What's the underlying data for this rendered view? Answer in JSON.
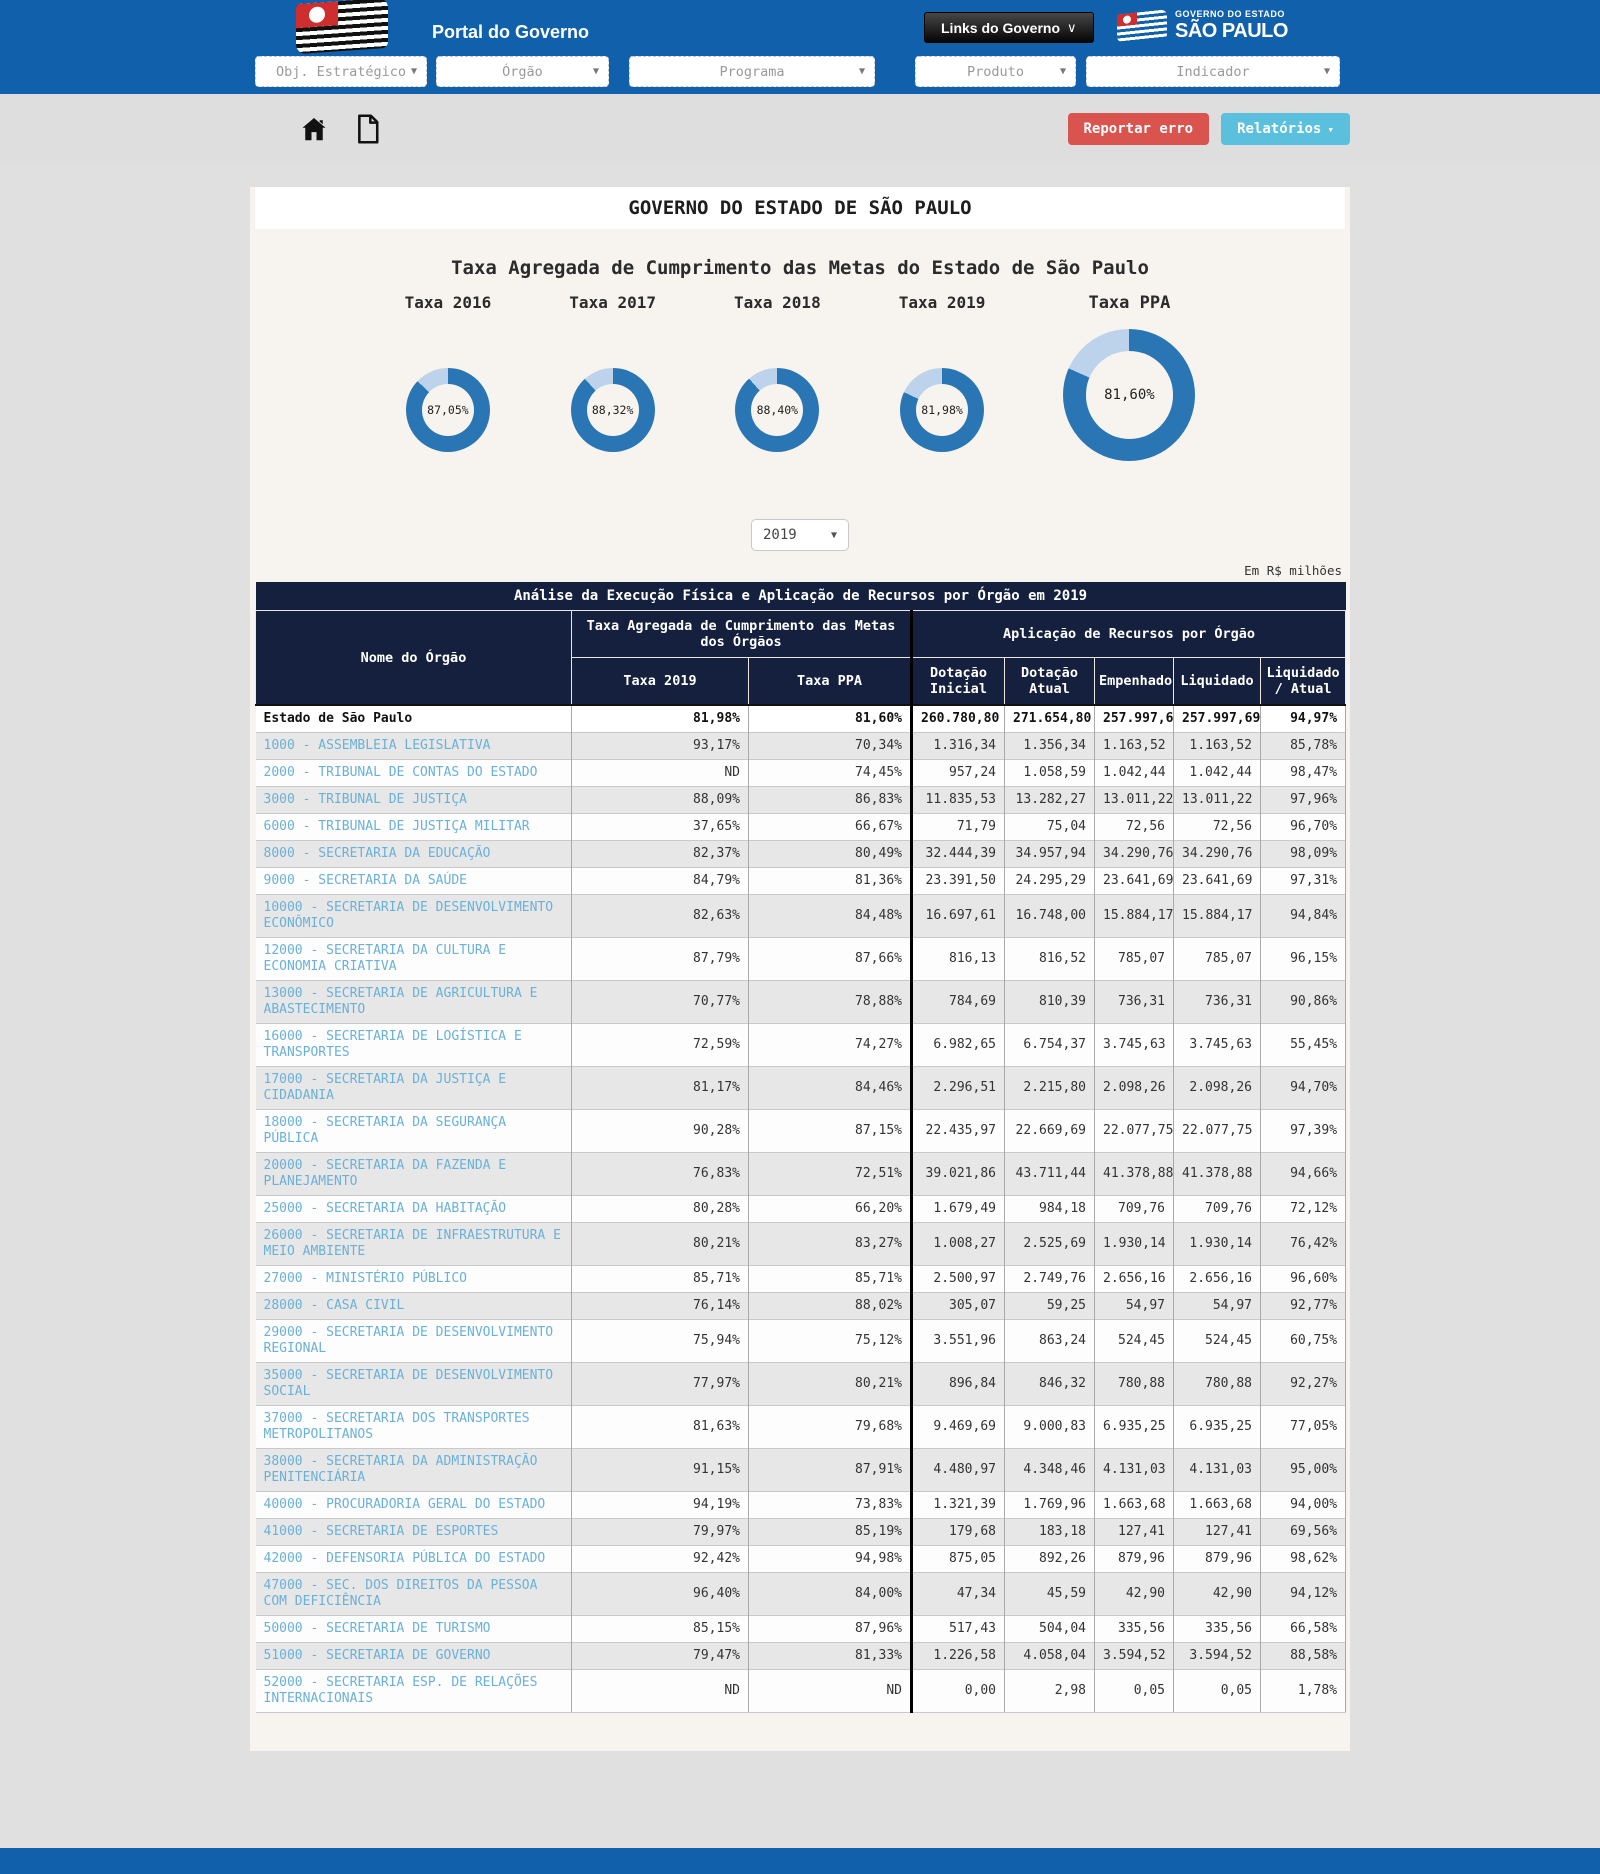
{
  "header": {
    "portal_title": "Portal do Governo",
    "links_button": "Links do Governo",
    "logo_line1": "GOVERNO DO ESTADO",
    "logo_line2": "SÃO PAULO"
  },
  "filters": [
    "Obj. Estratégico",
    "Órgão",
    "Programa",
    "Produto",
    "Indicador"
  ],
  "toolbar": {
    "report_error_label": "Reportar erro",
    "reports_label": "Relatórios"
  },
  "page": {
    "main_title": "GOVERNO DO ESTADO DE SÃO PAULO",
    "chart_title": "Taxa Agregada de Cumprimento das Metas do Estado de São Paulo",
    "year_selected": "2019",
    "unit_note": "Em R$ milhões"
  },
  "icons": {
    "home": "home-icon",
    "file": "file-icon",
    "caret": "chevron-down-icon"
  },
  "colors": {
    "header_blue": "#1160ac",
    "navy_table_header": "#15203e",
    "donut_filled": "#2a76b4",
    "donut_remainder": "#bdd3ec",
    "danger_button": "#d9534f",
    "info_button": "#5bc0de",
    "org_link": "#6ab1d8",
    "card_bg": "#f7f4ef"
  },
  "chart_data": {
    "type": "pie",
    "title": "Taxa Agregada de Cumprimento das Metas do Estado de São Paulo",
    "legend_position": "none",
    "donuts": [
      {
        "label": "Taxa 2016",
        "value_pct": 87.05,
        "display": "87,05%",
        "size": "small"
      },
      {
        "label": "Taxa 2017",
        "value_pct": 88.32,
        "display": "88,32%",
        "size": "small"
      },
      {
        "label": "Taxa 2018",
        "value_pct": 88.4,
        "display": "88,40%",
        "size": "small"
      },
      {
        "label": "Taxa 2019",
        "value_pct": 81.98,
        "display": "81,98%",
        "size": "small"
      },
      {
        "label": "Taxa PPA",
        "value_pct": 81.6,
        "display": "81,60%",
        "size": "big"
      }
    ]
  },
  "table": {
    "caption": "Análise da Execução Física e Aplicação de Recursos por Órgão em 2019",
    "name_header": "Nome do Órgão",
    "group1": "Taxa Agregada de Cumprimento das Metas dos Órgãos",
    "group2": "Aplicação de Recursos por Órgão",
    "sub_headers": [
      "Taxa 2019",
      "Taxa PPA",
      "Dotação Inicial",
      "Dotação Atual",
      "Empenhado",
      "Liquidado",
      "Liquidado / Atual"
    ],
    "rows": [
      {
        "name": "Estado de São Paulo",
        "taxa_2019": "81,98%",
        "taxa_ppa": "81,60%",
        "dotacao_inicial": "260.780,80",
        "dotacao_atual": "271.654,80",
        "empenhado": "257.997,69",
        "liquidado": "257.997,69",
        "liquidado_atual": "94,97%",
        "is_total": true
      },
      {
        "name": "1000 - ASSEMBLEIA LEGISLATIVA",
        "taxa_2019": "93,17%",
        "taxa_ppa": "70,34%",
        "dotacao_inicial": "1.316,34",
        "dotacao_atual": "1.356,34",
        "empenhado": "1.163,52",
        "liquidado": "1.163,52",
        "liquidado_atual": "85,78%"
      },
      {
        "name": "2000 - TRIBUNAL DE CONTAS DO ESTADO",
        "taxa_2019": "ND",
        "taxa_ppa": "74,45%",
        "dotacao_inicial": "957,24",
        "dotacao_atual": "1.058,59",
        "empenhado": "1.042,44",
        "liquidado": "1.042,44",
        "liquidado_atual": "98,47%"
      },
      {
        "name": "3000 - TRIBUNAL DE JUSTIÇA",
        "taxa_2019": "88,09%",
        "taxa_ppa": "86,83%",
        "dotacao_inicial": "11.835,53",
        "dotacao_atual": "13.282,27",
        "empenhado": "13.011,22",
        "liquidado": "13.011,22",
        "liquidado_atual": "97,96%"
      },
      {
        "name": "6000 - TRIBUNAL DE JUSTIÇA MILITAR",
        "taxa_2019": "37,65%",
        "taxa_ppa": "66,67%",
        "dotacao_inicial": "71,79",
        "dotacao_atual": "75,04",
        "empenhado": "72,56",
        "liquidado": "72,56",
        "liquidado_atual": "96,70%"
      },
      {
        "name": "8000 - SECRETARIA DA EDUCAÇÃO",
        "taxa_2019": "82,37%",
        "taxa_ppa": "80,49%",
        "dotacao_inicial": "32.444,39",
        "dotacao_atual": "34.957,94",
        "empenhado": "34.290,76",
        "liquidado": "34.290,76",
        "liquidado_atual": "98,09%"
      },
      {
        "name": "9000 - SECRETARIA DA SAÚDE",
        "taxa_2019": "84,79%",
        "taxa_ppa": "81,36%",
        "dotacao_inicial": "23.391,50",
        "dotacao_atual": "24.295,29",
        "empenhado": "23.641,69",
        "liquidado": "23.641,69",
        "liquidado_atual": "97,31%"
      },
      {
        "name": "10000 - SECRETARIA DE DESENVOLVIMENTO ECONÔMICO",
        "taxa_2019": "82,63%",
        "taxa_ppa": "84,48%",
        "dotacao_inicial": "16.697,61",
        "dotacao_atual": "16.748,00",
        "empenhado": "15.884,17",
        "liquidado": "15.884,17",
        "liquidado_atual": "94,84%"
      },
      {
        "name": "12000 - SECRETARIA DA CULTURA E ECONOMIA CRIATIVA",
        "taxa_2019": "87,79%",
        "taxa_ppa": "87,66%",
        "dotacao_inicial": "816,13",
        "dotacao_atual": "816,52",
        "empenhado": "785,07",
        "liquidado": "785,07",
        "liquidado_atual": "96,15%"
      },
      {
        "name": "13000 - SECRETARIA DE AGRICULTURA E ABASTECIMENTO",
        "taxa_2019": "70,77%",
        "taxa_ppa": "78,88%",
        "dotacao_inicial": "784,69",
        "dotacao_atual": "810,39",
        "empenhado": "736,31",
        "liquidado": "736,31",
        "liquidado_atual": "90,86%"
      },
      {
        "name": "16000 - SECRETARIA DE LOGÍSTICA E TRANSPORTES",
        "taxa_2019": "72,59%",
        "taxa_ppa": "74,27%",
        "dotacao_inicial": "6.982,65",
        "dotacao_atual": "6.754,37",
        "empenhado": "3.745,63",
        "liquidado": "3.745,63",
        "liquidado_atual": "55,45%"
      },
      {
        "name": "17000 - SECRETARIA DA JUSTIÇA E CIDADANIA",
        "taxa_2019": "81,17%",
        "taxa_ppa": "84,46%",
        "dotacao_inicial": "2.296,51",
        "dotacao_atual": "2.215,80",
        "empenhado": "2.098,26",
        "liquidado": "2.098,26",
        "liquidado_atual": "94,70%"
      },
      {
        "name": "18000 - SECRETARIA DA SEGURANÇA PÚBLICA",
        "taxa_2019": "90,28%",
        "taxa_ppa": "87,15%",
        "dotacao_inicial": "22.435,97",
        "dotacao_atual": "22.669,69",
        "empenhado": "22.077,75",
        "liquidado": "22.077,75",
        "liquidado_atual": "97,39%"
      },
      {
        "name": "20000 - SECRETARIA DA FAZENDA E PLANEJAMENTO",
        "taxa_2019": "76,83%",
        "taxa_ppa": "72,51%",
        "dotacao_inicial": "39.021,86",
        "dotacao_atual": "43.711,44",
        "empenhado": "41.378,88",
        "liquidado": "41.378,88",
        "liquidado_atual": "94,66%"
      },
      {
        "name": "25000 - SECRETARIA DA HABITAÇÃO",
        "taxa_2019": "80,28%",
        "taxa_ppa": "66,20%",
        "dotacao_inicial": "1.679,49",
        "dotacao_atual": "984,18",
        "empenhado": "709,76",
        "liquidado": "709,76",
        "liquidado_atual": "72,12%"
      },
      {
        "name": "26000 - SECRETARIA DE INFRAESTRUTURA E MEIO AMBIENTE",
        "taxa_2019": "80,21%",
        "taxa_ppa": "83,27%",
        "dotacao_inicial": "1.008,27",
        "dotacao_atual": "2.525,69",
        "empenhado": "1.930,14",
        "liquidado": "1.930,14",
        "liquidado_atual": "76,42%"
      },
      {
        "name": "27000 - MINISTÉRIO PÚBLICO",
        "taxa_2019": "85,71%",
        "taxa_ppa": "85,71%",
        "dotacao_inicial": "2.500,97",
        "dotacao_atual": "2.749,76",
        "empenhado": "2.656,16",
        "liquidado": "2.656,16",
        "liquidado_atual": "96,60%"
      },
      {
        "name": "28000 - CASA CIVIL",
        "taxa_2019": "76,14%",
        "taxa_ppa": "88,02%",
        "dotacao_inicial": "305,07",
        "dotacao_atual": "59,25",
        "empenhado": "54,97",
        "liquidado": "54,97",
        "liquidado_atual": "92,77%"
      },
      {
        "name": "29000 - SECRETARIA DE DESENVOLVIMENTO REGIONAL",
        "taxa_2019": "75,94%",
        "taxa_ppa": "75,12%",
        "dotacao_inicial": "3.551,96",
        "dotacao_atual": "863,24",
        "empenhado": "524,45",
        "liquidado": "524,45",
        "liquidado_atual": "60,75%"
      },
      {
        "name": "35000 - SECRETARIA DE DESENVOLVIMENTO SOCIAL",
        "taxa_2019": "77,97%",
        "taxa_ppa": "80,21%",
        "dotacao_inicial": "896,84",
        "dotacao_atual": "846,32",
        "empenhado": "780,88",
        "liquidado": "780,88",
        "liquidado_atual": "92,27%"
      },
      {
        "name": "37000 - SECRETARIA DOS TRANSPORTES METROPOLITANOS",
        "taxa_2019": "81,63%",
        "taxa_ppa": "79,68%",
        "dotacao_inicial": "9.469,69",
        "dotacao_atual": "9.000,83",
        "empenhado": "6.935,25",
        "liquidado": "6.935,25",
        "liquidado_atual": "77,05%"
      },
      {
        "name": "38000 - SECRETARIA DA ADMINISTRAÇÃO PENITENCIÁRIA",
        "taxa_2019": "91,15%",
        "taxa_ppa": "87,91%",
        "dotacao_inicial": "4.480,97",
        "dotacao_atual": "4.348,46",
        "empenhado": "4.131,03",
        "liquidado": "4.131,03",
        "liquidado_atual": "95,00%"
      },
      {
        "name": "40000 - PROCURADORIA GERAL DO ESTADO",
        "taxa_2019": "94,19%",
        "taxa_ppa": "73,83%",
        "dotacao_inicial": "1.321,39",
        "dotacao_atual": "1.769,96",
        "empenhado": "1.663,68",
        "liquidado": "1.663,68",
        "liquidado_atual": "94,00%"
      },
      {
        "name": "41000 - SECRETARIA DE ESPORTES",
        "taxa_2019": "79,97%",
        "taxa_ppa": "85,19%",
        "dotacao_inicial": "179,68",
        "dotacao_atual": "183,18",
        "empenhado": "127,41",
        "liquidado": "127,41",
        "liquidado_atual": "69,56%"
      },
      {
        "name": "42000 - DEFENSORIA PÚBLICA DO ESTADO",
        "taxa_2019": "92,42%",
        "taxa_ppa": "94,98%",
        "dotacao_inicial": "875,05",
        "dotacao_atual": "892,26",
        "empenhado": "879,96",
        "liquidado": "879,96",
        "liquidado_atual": "98,62%"
      },
      {
        "name": "47000 - SEC. DOS DIREITOS DA PESSOA COM DEFICIÊNCIA",
        "taxa_2019": "96,40%",
        "taxa_ppa": "84,00%",
        "dotacao_inicial": "47,34",
        "dotacao_atual": "45,59",
        "empenhado": "42,90",
        "liquidado": "42,90",
        "liquidado_atual": "94,12%"
      },
      {
        "name": "50000 - SECRETARIA DE TURISMO",
        "taxa_2019": "85,15%",
        "taxa_ppa": "87,96%",
        "dotacao_inicial": "517,43",
        "dotacao_atual": "504,04",
        "empenhado": "335,56",
        "liquidado": "335,56",
        "liquidado_atual": "66,58%"
      },
      {
        "name": "51000 - SECRETARIA DE GOVERNO",
        "taxa_2019": "79,47%",
        "taxa_ppa": "81,33%",
        "dotacao_inicial": "1.226,58",
        "dotacao_atual": "4.058,04",
        "empenhado": "3.594,52",
        "liquidado": "3.594,52",
        "liquidado_atual": "88,58%"
      },
      {
        "name": "52000 - SECRETARIA ESP. DE RELAÇÕES INTERNACIONAIS",
        "taxa_2019": "ND",
        "taxa_ppa": "ND",
        "dotacao_inicial": "0,00",
        "dotacao_atual": "2,98",
        "empenhado": "0,05",
        "liquidado": "0,05",
        "liquidado_atual": "1,78%"
      }
    ]
  }
}
